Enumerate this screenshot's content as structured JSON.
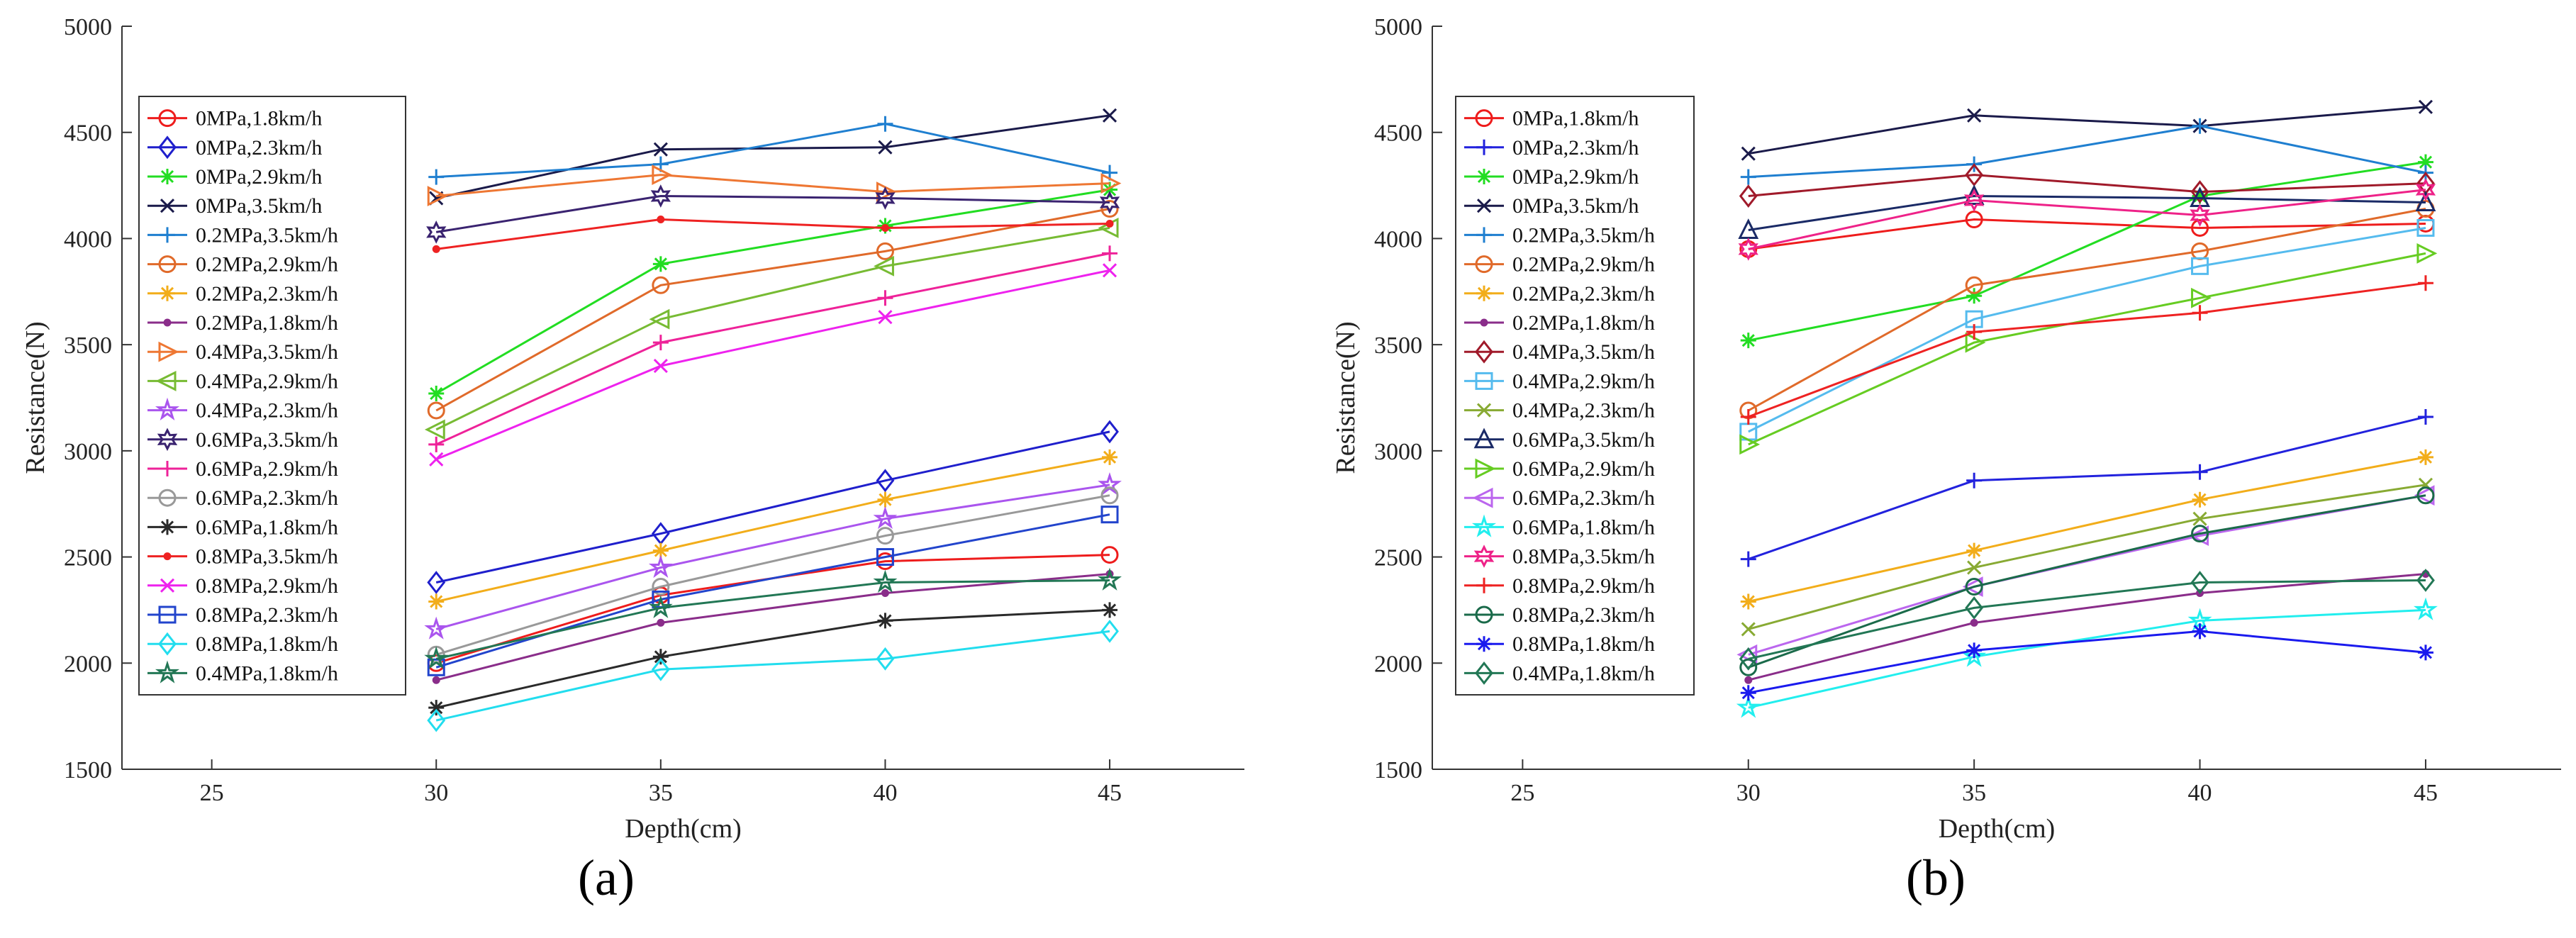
{
  "chart_data": [
    {
      "type": "line",
      "caption": "(a)",
      "xlabel": "Depth(cm)",
      "ylabel": "Resistance(N)",
      "xlim": [
        23,
        48
      ],
      "ylim": [
        1500,
        5000
      ],
      "xticks": [
        25,
        30,
        35,
        40,
        45
      ],
      "yticks": [
        1500,
        2000,
        2500,
        3000,
        3500,
        4000,
        4500,
        5000
      ],
      "x": [
        30,
        35,
        40,
        45
      ],
      "legend_position": "top-left",
      "series": [
        {
          "name": "0MPa,1.8km/h",
          "color": "#ee1c1c",
          "marker": "circle",
          "values": [
            2000,
            2320,
            2480,
            2510
          ]
        },
        {
          "name": "0MPa,2.3km/h",
          "color": "#1f1fcc",
          "marker": "diamond",
          "values": [
            2380,
            2610,
            2860,
            3090
          ]
        },
        {
          "name": "0MPa,2.9km/h",
          "color": "#22dd22",
          "marker": "asterisk",
          "values": [
            3270,
            3880,
            4060,
            4230
          ]
        },
        {
          "name": "0MPa,3.5km/h",
          "color": "#1a1a4a",
          "marker": "x",
          "values": [
            4190,
            4420,
            4430,
            4580
          ]
        },
        {
          "name": "0.2MPa,3.5km/h",
          "color": "#1f7fd0",
          "marker": "plus",
          "values": [
            4290,
            4350,
            4540,
            4310
          ]
        },
        {
          "name": "0.2MPa,2.9km/h",
          "color": "#e06a2a",
          "marker": "circle",
          "values": [
            3190,
            3780,
            3940,
            4140
          ]
        },
        {
          "name": "0.2MPa,2.3km/h",
          "color": "#f2ad1a",
          "marker": "asterisk",
          "values": [
            2290,
            2530,
            2770,
            2970
          ]
        },
        {
          "name": "0.2MPa,1.8km/h",
          "color": "#8a2d8a",
          "marker": "point",
          "values": [
            1920,
            2190,
            2330,
            2420
          ]
        },
        {
          "name": "0.4MPa,3.5km/h",
          "color": "#ee7733",
          "marker": "triangle-right",
          "values": [
            4200,
            4300,
            4220,
            4260
          ]
        },
        {
          "name": "0.4MPa,2.9km/h",
          "color": "#77bb33",
          "marker": "triangle-left",
          "values": [
            3100,
            3620,
            3870,
            4050
          ]
        },
        {
          "name": "0.4MPa,2.3km/h",
          "color": "#aa55ee",
          "marker": "star",
          "values": [
            2160,
            2450,
            2680,
            2840
          ]
        },
        {
          "name": "0.6MPa,3.5km/h",
          "color": "#3a2370",
          "marker": "hexagram",
          "values": [
            4030,
            4200,
            4190,
            4170
          ]
        },
        {
          "name": "0.6MPa,2.9km/h",
          "color": "#ee2299",
          "marker": "plus",
          "values": [
            3030,
            3510,
            3720,
            3930
          ]
        },
        {
          "name": "0.6MPa,2.3km/h",
          "color": "#999999",
          "marker": "circle",
          "values": [
            2040,
            2360,
            2600,
            2790
          ]
        },
        {
          "name": "0.6MPa,1.8km/h",
          "color": "#2a2a2a",
          "marker": "asterisk",
          "values": [
            1790,
            2030,
            2200,
            2250
          ]
        },
        {
          "name": "0.8MPa,3.5km/h",
          "color": "#ee2222",
          "marker": "point",
          "values": [
            3950,
            4090,
            4050,
            4070
          ]
        },
        {
          "name": "0.8MPa,2.9km/h",
          "color": "#ee22ee",
          "marker": "x",
          "values": [
            2960,
            3400,
            3630,
            3850
          ]
        },
        {
          "name": "0.8MPa,2.3km/h",
          "color": "#2244cc",
          "marker": "square",
          "values": [
            1980,
            2300,
            2500,
            2700
          ]
        },
        {
          "name": "0.8MPa,1.8km/h",
          "color": "#22ddee",
          "marker": "diamond",
          "values": [
            1730,
            1970,
            2020,
            2150
          ]
        },
        {
          "name": "0.4MPa,1.8km/h",
          "color": "#227755",
          "marker": "star",
          "values": [
            2020,
            2260,
            2380,
            2390
          ]
        }
      ]
    },
    {
      "type": "line",
      "caption": "(b)",
      "xlabel": "Depth(cm)",
      "ylabel": "Resistance(N)",
      "xlim": [
        23,
        48
      ],
      "ylim": [
        1500,
        5000
      ],
      "xticks": [
        25,
        30,
        35,
        40,
        45
      ],
      "yticks": [
        1500,
        2000,
        2500,
        3000,
        3500,
        4000,
        4500,
        5000
      ],
      "x": [
        30,
        35,
        40,
        45
      ],
      "legend_position": "top-left",
      "series": [
        {
          "name": "0MPa,1.8km/h",
          "color": "#ee1c1c",
          "marker": "circle",
          "values": [
            3950,
            4090,
            4050,
            4070
          ]
        },
        {
          "name": "0MPa,2.3km/h",
          "color": "#2222dd",
          "marker": "plus",
          "values": [
            2490,
            2860,
            2900,
            3160
          ]
        },
        {
          "name": "0MPa,2.9km/h",
          "color": "#22dd22",
          "marker": "asterisk",
          "values": [
            3520,
            3730,
            4200,
            4360
          ]
        },
        {
          "name": "0MPa,3.5km/h",
          "color": "#1a1a4a",
          "marker": "x",
          "values": [
            4400,
            4580,
            4530,
            4620
          ]
        },
        {
          "name": "0.2MPa,3.5km/h",
          "color": "#1f7fd0",
          "marker": "plus",
          "values": [
            4290,
            4350,
            4530,
            4310
          ]
        },
        {
          "name": "0.2MPa,2.9km/h",
          "color": "#e06a2a",
          "marker": "circle",
          "values": [
            3190,
            3780,
            3940,
            4140
          ]
        },
        {
          "name": "0.2MPa,2.3km/h",
          "color": "#f2ad1a",
          "marker": "asterisk",
          "values": [
            2290,
            2530,
            2770,
            2970
          ]
        },
        {
          "name": "0.2MPa,1.8km/h",
          "color": "#8a2d8a",
          "marker": "point",
          "values": [
            1920,
            2190,
            2330,
            2420
          ]
        },
        {
          "name": "0.4MPa,3.5km/h",
          "color": "#a01a2a",
          "marker": "diamond",
          "values": [
            4200,
            4300,
            4220,
            4260
          ]
        },
        {
          "name": "0.4MPa,2.9km/h",
          "color": "#55bbee",
          "marker": "square",
          "values": [
            3090,
            3620,
            3870,
            4050
          ]
        },
        {
          "name": "0.4MPa,2.3km/h",
          "color": "#88aa33",
          "marker": "x",
          "values": [
            2160,
            2450,
            2680,
            2840
          ]
        },
        {
          "name": "0.6MPa,3.5km/h",
          "color": "#1a2a66",
          "marker": "triangle-up",
          "values": [
            4040,
            4200,
            4190,
            4170
          ]
        },
        {
          "name": "0.6MPa,2.9km/h",
          "color": "#66cc22",
          "marker": "triangle-right",
          "values": [
            3030,
            3510,
            3720,
            3930
          ]
        },
        {
          "name": "0.6MPa,2.3km/h",
          "color": "#bb66ee",
          "marker": "triangle-left",
          "values": [
            2040,
            2360,
            2600,
            2790
          ]
        },
        {
          "name": "0.6MPa,1.8km/h",
          "color": "#22eeee",
          "marker": "star",
          "values": [
            1790,
            2030,
            2200,
            2250
          ]
        },
        {
          "name": "0.8MPa,3.5km/h",
          "color": "#ee2288",
          "marker": "hexagram",
          "values": [
            3950,
            4180,
            4110,
            4230
          ]
        },
        {
          "name": "0.8MPa,2.9km/h",
          "color": "#ee2222",
          "marker": "plus",
          "values": [
            3160,
            3560,
            3650,
            3790
          ]
        },
        {
          "name": "0.8MPa,2.3km/h",
          "color": "#1a6a4a",
          "marker": "circle",
          "values": [
            1980,
            2360,
            2610,
            2790
          ]
        },
        {
          "name": "0.8MPa,1.8km/h",
          "color": "#1a1aee",
          "marker": "asterisk",
          "values": [
            1860,
            2060,
            2150,
            2050
          ]
        },
        {
          "name": "0.4MPa,1.8km/h",
          "color": "#227755",
          "marker": "diamond",
          "values": [
            2020,
            2260,
            2380,
            2390
          ]
        }
      ]
    }
  ]
}
